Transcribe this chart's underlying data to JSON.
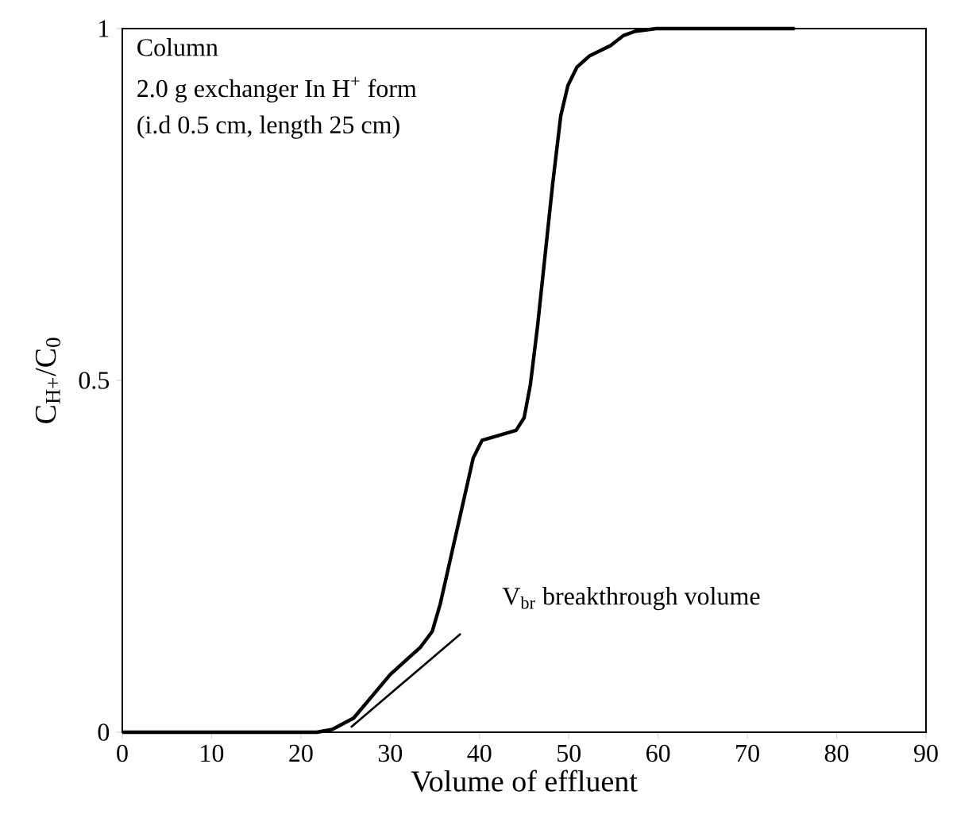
{
  "chart_data": {
    "type": "line",
    "xlabel": "Volume of effluent",
    "ylabel": "C$_{H+}$/C$_{0}$",
    "xlim": [
      0,
      90
    ],
    "xticks": [
      0,
      10,
      20,
      30,
      40,
      50,
      60,
      70,
      80,
      90
    ],
    "ylim": [
      0,
      1
    ],
    "yticks": [
      0,
      0.5,
      1
    ],
    "grid": false,
    "marker": "none",
    "line_style": "solid",
    "series": [
      {
        "color": "#000000",
        "x": [
          0,
          21.8,
          23.5,
          25.9,
          30,
          33.4,
          34.7,
          35.6,
          39.3,
          40.3,
          44.1,
          45,
          45.7,
          46.5,
          48.2,
          49.1,
          49.9,
          50.9,
          52.3,
          54.7,
          56.1,
          57.4,
          59.8,
          75.3
        ],
        "values": [
          0,
          0,
          0.004,
          0.02,
          0.082,
          0.121,
          0.143,
          0.182,
          0.39,
          0.415,
          0.429,
          0.447,
          0.494,
          0.577,
          0.78,
          0.876,
          0.919,
          0.945,
          0.961,
          0.976,
          0.99,
          0.996,
          1,
          1
        ]
      },
      {
        "color": "#000000",
        "x": [
          25.6,
          37.9
        ],
        "values": [
          0.007,
          0.14
        ]
      }
    ],
    "annotations": [
      "Column",
      "2.0 g exchanger In H$^{+}$ form",
      "(i.d 0.5 cm, length 25 cm)",
      "V$_{br}$ breakthrough volume"
    ]
  }
}
